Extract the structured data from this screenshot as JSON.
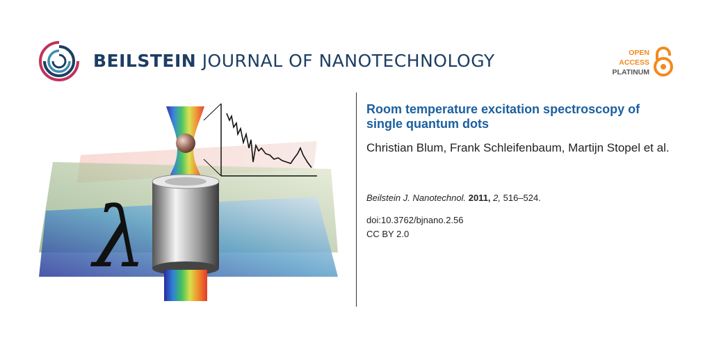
{
  "header": {
    "journal_bold": "BEILSTEIN",
    "journal_rest": "JOURNAL OF NANOTECHNOLOGY",
    "open_access": {
      "line1": "OPEN",
      "line2": "ACCESS",
      "line3": "PLATINUM"
    },
    "colors": {
      "brand": "#1d3e63",
      "orange": "#f28a1e",
      "title_blue": "#1b5f9f"
    }
  },
  "figure": {
    "lambda_symbol": "λ",
    "icons": [
      "objective-lens",
      "laser-beam",
      "quantum-dot",
      "spectrum-plot"
    ]
  },
  "article": {
    "title": "Room temperature excitation spectroscopy of single quantum dots",
    "authors": "Christian Blum, Frank Schleifenbaum, Martijn Stopel et al.",
    "citation": {
      "journal": "Beilstein J. Nanotechnol.",
      "year": "2011,",
      "volume": "2,",
      "pages": "516–524."
    },
    "doi": "doi:10.3762/bjnano.2.56",
    "license": "CC BY 2.0"
  }
}
